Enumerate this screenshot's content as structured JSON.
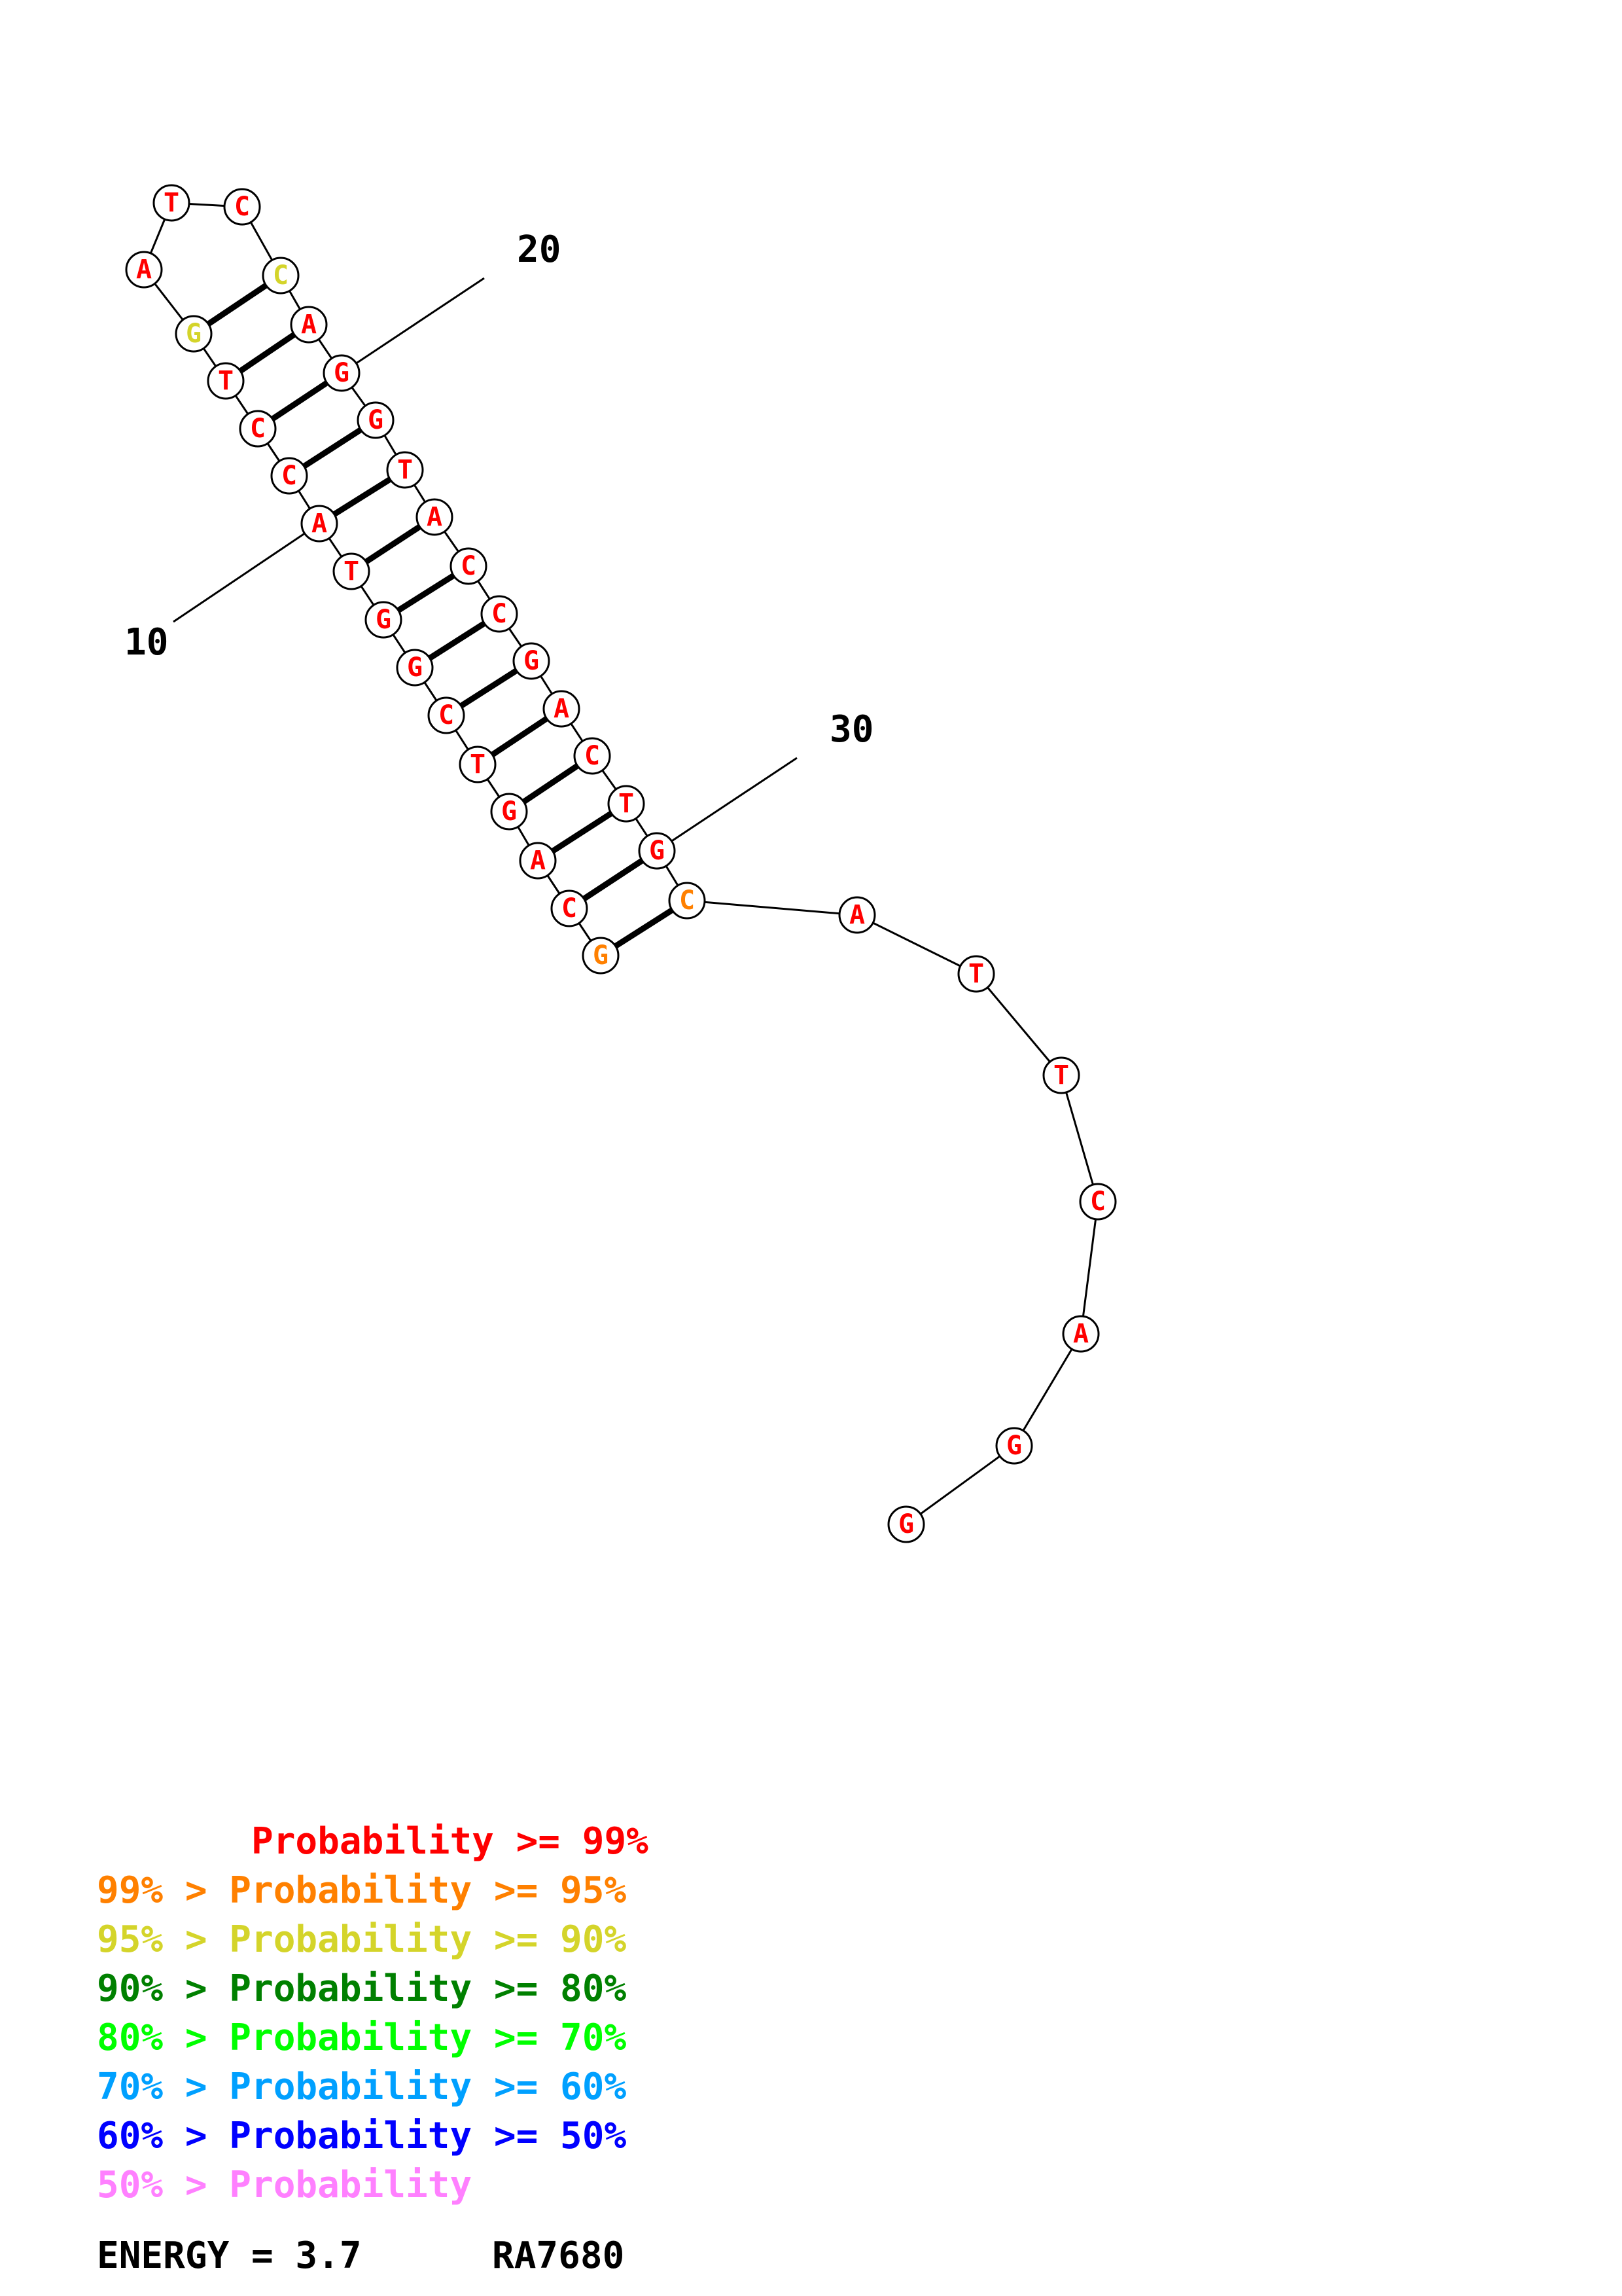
{
  "colors": {
    "p99": "#ff0000",
    "p95": "#ff8000",
    "p90": "#d4d42a",
    "p80": "#008000",
    "p70": "#00ff00",
    "p60": "#00a0ff",
    "p50": "#0000ff",
    "plow": "#ff80ff"
  },
  "nucleotides": [
    {
      "base": "G",
      "prob": "p95"
    },
    {
      "base": "C",
      "prob": "p99"
    },
    {
      "base": "A",
      "prob": "p99"
    },
    {
      "base": "G",
      "prob": "p99"
    },
    {
      "base": "T",
      "prob": "p99"
    },
    {
      "base": "C",
      "prob": "p99"
    },
    {
      "base": "G",
      "prob": "p99"
    },
    {
      "base": "G",
      "prob": "p99"
    },
    {
      "base": "T",
      "prob": "p99"
    },
    {
      "base": "A",
      "prob": "p99"
    },
    {
      "base": "C",
      "prob": "p99"
    },
    {
      "base": "C",
      "prob": "p99"
    },
    {
      "base": "T",
      "prob": "p99"
    },
    {
      "base": "G",
      "prob": "p90"
    },
    {
      "base": "A",
      "prob": "p99"
    },
    {
      "base": "T",
      "prob": "p99"
    },
    {
      "base": "C",
      "prob": "p99"
    },
    {
      "base": "C",
      "prob": "p90"
    },
    {
      "base": "A",
      "prob": "p99"
    },
    {
      "base": "G",
      "prob": "p99"
    },
    {
      "base": "G",
      "prob": "p99"
    },
    {
      "base": "T",
      "prob": "p99"
    },
    {
      "base": "A",
      "prob": "p99"
    },
    {
      "base": "C",
      "prob": "p99"
    },
    {
      "base": "C",
      "prob": "p99"
    },
    {
      "base": "G",
      "prob": "p99"
    },
    {
      "base": "A",
      "prob": "p99"
    },
    {
      "base": "C",
      "prob": "p99"
    },
    {
      "base": "T",
      "prob": "p99"
    },
    {
      "base": "G",
      "prob": "p99"
    },
    {
      "base": "C",
      "prob": "p95"
    },
    {
      "base": "A",
      "prob": "p99"
    },
    {
      "base": "T",
      "prob": "p99"
    },
    {
      "base": "T",
      "prob": "p99"
    },
    {
      "base": "C",
      "prob": "p99"
    },
    {
      "base": "A",
      "prob": "p99"
    },
    {
      "base": "G",
      "prob": "p99"
    },
    {
      "base": "G",
      "prob": "p99"
    }
  ],
  "pairs": [
    [
      1,
      31
    ],
    [
      2,
      30
    ],
    [
      3,
      29
    ],
    [
      4,
      28
    ],
    [
      5,
      27
    ],
    [
      6,
      26
    ],
    [
      7,
      25
    ],
    [
      8,
      24
    ],
    [
      9,
      23
    ],
    [
      10,
      22
    ],
    [
      11,
      21
    ],
    [
      12,
      20
    ],
    [
      13,
      19
    ],
    [
      14,
      18
    ]
  ],
  "index_labels": [
    {
      "position": 10,
      "text": "10"
    },
    {
      "position": 20,
      "text": "20"
    },
    {
      "position": 30,
      "text": "30"
    }
  ],
  "legend": [
    {
      "text": "       Probability >= 99%",
      "color": "p99"
    },
    {
      "text": "99% > Probability >= 95%",
      "color": "p95"
    },
    {
      "text": "95% > Probability >= 90%",
      "color": "p90"
    },
    {
      "text": "90% > Probability >= 80%",
      "color": "p80"
    },
    {
      "text": "80% > Probability >= 70%",
      "color": "p70"
    },
    {
      "text": "70% > Probability >= 60%",
      "color": "p60"
    },
    {
      "text": "60% > Probability >= 50%",
      "color": "p50"
    },
    {
      "text": "50% > Probability",
      "color": "plow"
    }
  ],
  "footer": {
    "energy": "ENERGY = 3.7",
    "name": "RA7680"
  }
}
